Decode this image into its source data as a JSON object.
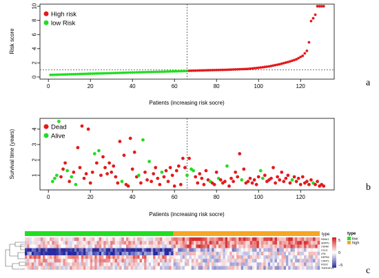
{
  "chart_data": [
    {
      "panel": "a",
      "type": "scatter",
      "xlabel": "Patients (increasing risk socre)",
      "ylabel": "Risk score",
      "xlim": [
        -4,
        136
      ],
      "ylim": [
        -0.3,
        10.3
      ],
      "xticks": [
        0,
        20,
        40,
        60,
        80,
        100,
        120
      ],
      "yticks": [
        0,
        2,
        4,
        6,
        8,
        10
      ],
      "cutoff_x": 66,
      "cutoff_y": 1,
      "legend": [
        "High risk",
        "low Risk"
      ],
      "legend_position": "top-left",
      "colors": {
        "high": "#e31a1c",
        "low": "#22dd22"
      },
      "knots": [
        [
          1,
          0.3
        ],
        [
          10,
          0.38
        ],
        [
          20,
          0.47
        ],
        [
          30,
          0.55
        ],
        [
          40,
          0.64
        ],
        [
          50,
          0.72
        ],
        [
          60,
          0.8
        ],
        [
          66,
          0.85
        ],
        [
          67,
          0.88
        ],
        [
          75,
          0.95
        ],
        [
          85,
          1.02
        ],
        [
          95,
          1.15
        ],
        [
          100,
          1.3
        ],
        [
          105,
          1.5
        ],
        [
          110,
          1.8
        ],
        [
          115,
          2.2
        ],
        [
          118,
          2.5
        ],
        [
          121,
          3.0
        ],
        [
          123,
          3.7
        ],
        [
          124,
          4.9
        ],
        [
          125,
          7.9
        ],
        [
          126,
          8.3
        ],
        [
          127,
          8.8
        ],
        [
          128,
          10
        ],
        [
          131,
          10
        ]
      ],
      "n": 131
    },
    {
      "panel": "b",
      "type": "scatter",
      "xlabel": "Patients (increasing risk socre)",
      "ylabel": "Survival time (years)",
      "xlim": [
        -4,
        136
      ],
      "ylim": [
        0.05,
        4.7
      ],
      "xticks": [
        0,
        20,
        40,
        60,
        80,
        100,
        120
      ],
      "yticks": [
        1,
        2,
        3,
        4
      ],
      "cutoff_x": 66,
      "legend": [
        "Dead",
        "Alive"
      ],
      "legend_position": "top-left",
      "colors": {
        "dead": "#e31a1c",
        "alive": "#22dd22"
      },
      "points": [
        [
          2,
          0.6,
          "alive"
        ],
        [
          3,
          0.8,
          "alive"
        ],
        [
          4,
          1.0,
          "alive"
        ],
        [
          5,
          4.5,
          "alive"
        ],
        [
          6,
          0.9,
          "dead"
        ],
        [
          7,
          1.4,
          "dead"
        ],
        [
          8,
          1.8,
          "dead"
        ],
        [
          9,
          1.3,
          "alive"
        ],
        [
          10,
          0.6,
          "dead"
        ],
        [
          11,
          0.9,
          "alive"
        ],
        [
          12,
          1.2,
          "dead"
        ],
        [
          13,
          0.4,
          "alive"
        ],
        [
          14,
          2.8,
          "dead"
        ],
        [
          15,
          1.5,
          "dead"
        ],
        [
          16,
          4.2,
          "dead"
        ],
        [
          17,
          0.8,
          "dead"
        ],
        [
          18,
          1.1,
          "dead"
        ],
        [
          19,
          4.0,
          "dead"
        ],
        [
          20,
          0.5,
          "dead"
        ],
        [
          21,
          1.2,
          "dead"
        ],
        [
          22,
          2.4,
          "alive"
        ],
        [
          23,
          1.8,
          "dead"
        ],
        [
          24,
          2.6,
          "alive"
        ],
        [
          25,
          1.0,
          "dead"
        ],
        [
          26,
          2.2,
          "dead"
        ],
        [
          27,
          1.5,
          "dead"
        ],
        [
          28,
          1.1,
          "dead"
        ],
        [
          29,
          1.8,
          "dead"
        ],
        [
          30,
          1.2,
          "dead"
        ],
        [
          31,
          1.6,
          "dead"
        ],
        [
          32,
          0.9,
          "dead"
        ],
        [
          33,
          0.5,
          "dead"
        ],
        [
          34,
          3.2,
          "dead"
        ],
        [
          35,
          0.6,
          "alive"
        ],
        [
          36,
          2.3,
          "dead"
        ],
        [
          37,
          0.4,
          "dead"
        ],
        [
          38,
          0.3,
          "dead"
        ],
        [
          39,
          3.4,
          "dead"
        ],
        [
          40,
          1.4,
          "dead"
        ],
        [
          41,
          2.5,
          "dead"
        ],
        [
          42,
          0.9,
          "dead"
        ],
        [
          43,
          1.0,
          "alive"
        ],
        [
          44,
          0.5,
          "dead"
        ],
        [
          45,
          3.3,
          "alive"
        ],
        [
          46,
          1.2,
          "dead"
        ],
        [
          47,
          0.7,
          "dead"
        ],
        [
          48,
          1.9,
          "alive"
        ],
        [
          49,
          0.6,
          "dead"
        ],
        [
          50,
          1.1,
          "dead"
        ],
        [
          51,
          1.5,
          "dead"
        ],
        [
          52,
          0.8,
          "dead"
        ],
        [
          53,
          0.4,
          "dead"
        ],
        [
          54,
          1.2,
          "alive"
        ],
        [
          55,
          0.9,
          "dead"
        ],
        [
          56,
          1.3,
          "dead"
        ],
        [
          57,
          0.6,
          "dead"
        ],
        [
          58,
          1.5,
          "dead"
        ],
        [
          59,
          1.0,
          "dead"
        ],
        [
          60,
          0.3,
          "dead"
        ],
        [
          61,
          1.3,
          "dead"
        ],
        [
          62,
          1.6,
          "dead"
        ],
        [
          63,
          0.4,
          "dead"
        ],
        [
          64,
          2.1,
          "dead"
        ],
        [
          65,
          1.5,
          "dead"
        ],
        [
          66,
          1.0,
          "alive"
        ],
        [
          67,
          2.1,
          "dead"
        ],
        [
          68,
          1.4,
          "alive"
        ],
        [
          69,
          1.3,
          "alive"
        ],
        [
          70,
          0.9,
          "dead"
        ],
        [
          71,
          0.5,
          "dead"
        ],
        [
          72,
          1.1,
          "dead"
        ],
        [
          73,
          0.8,
          "dead"
        ],
        [
          74,
          0.4,
          "dead"
        ],
        [
          75,
          1.3,
          "dead"
        ],
        [
          76,
          0.7,
          "dead"
        ],
        [
          77,
          0.6,
          "alive"
        ],
        [
          78,
          0.5,
          "dead"
        ],
        [
          79,
          0.4,
          "dead"
        ],
        [
          80,
          1.2,
          "dead"
        ],
        [
          81,
          0.8,
          "alive"
        ],
        [
          82,
          0.7,
          "dead"
        ],
        [
          83,
          0.5,
          "dead"
        ],
        [
          84,
          0.6,
          "dead"
        ],
        [
          85,
          1.6,
          "alive"
        ],
        [
          86,
          0.3,
          "dead"
        ],
        [
          87,
          0.8,
          "dead"
        ],
        [
          88,
          0.6,
          "dead"
        ],
        [
          89,
          1.2,
          "dead"
        ],
        [
          90,
          0.9,
          "dead"
        ],
        [
          91,
          2.4,
          "dead"
        ],
        [
          92,
          0.7,
          "alive"
        ],
        [
          93,
          1.4,
          "dead"
        ],
        [
          94,
          0.5,
          "dead"
        ],
        [
          95,
          0.6,
          "dead"
        ],
        [
          96,
          0.8,
          "dead"
        ],
        [
          97,
          0.5,
          "dead"
        ],
        [
          98,
          0.7,
          "dead"
        ],
        [
          99,
          0.4,
          "dead"
        ],
        [
          100,
          0.9,
          "dead"
        ],
        [
          101,
          1.3,
          "alive"
        ],
        [
          102,
          0.8,
          "alive"
        ],
        [
          103,
          1.0,
          "dead"
        ],
        [
          104,
          0.6,
          "dead"
        ],
        [
          105,
          0.7,
          "dead"
        ],
        [
          106,
          0.8,
          "dead"
        ],
        [
          107,
          1.5,
          "dead"
        ],
        [
          108,
          0.5,
          "dead"
        ],
        [
          109,
          0.9,
          "dead"
        ],
        [
          110,
          0.7,
          "dead"
        ],
        [
          111,
          1.2,
          "dead"
        ],
        [
          112,
          0.6,
          "dead"
        ],
        [
          113,
          0.8,
          "dead"
        ],
        [
          114,
          1.0,
          "dead"
        ],
        [
          115,
          0.5,
          "dead"
        ],
        [
          116,
          0.7,
          "alive"
        ],
        [
          117,
          0.9,
          "dead"
        ],
        [
          118,
          0.6,
          "dead"
        ],
        [
          119,
          0.8,
          "dead"
        ],
        [
          120,
          0.4,
          "dead"
        ],
        [
          121,
          0.9,
          "dead"
        ],
        [
          122,
          0.5,
          "dead"
        ],
        [
          123,
          0.6,
          "dead"
        ],
        [
          124,
          0.4,
          "dead"
        ],
        [
          125,
          0.7,
          "dead"
        ],
        [
          126,
          0.5,
          "alive"
        ],
        [
          127,
          0.4,
          "dead"
        ],
        [
          128,
          0.6,
          "dead"
        ],
        [
          129,
          0.3,
          "dead"
        ],
        [
          130,
          0.4,
          "dead"
        ],
        [
          131,
          0.3,
          "dead"
        ]
      ]
    },
    {
      "panel": "c",
      "type": "heatmap",
      "annotation_label": "type",
      "annotation": {
        "low_count": 66,
        "high_count": 65
      },
      "legend_title": "type",
      "legend_items": [
        {
          "label": "low",
          "color": "#22dd22"
        },
        {
          "label": "high",
          "color": "#f5a623"
        }
      ],
      "colorbar_ticks": [
        "5",
        "0",
        "−5"
      ],
      "rows": [
        "PANK1",
        "SRRP1",
        "CDNM",
        "CCL5",
        "LPA",
        "DEFB4",
        "CHRT1",
        "RGS2",
        "TNFRSF13"
      ],
      "row_groups": [
        [
          0,
          1,
          2
        ],
        [
          3,
          4
        ],
        [
          5,
          6,
          7,
          8
        ]
      ],
      "columns": 131
    }
  ],
  "panel_labels": [
    "a",
    "b",
    "c"
  ]
}
